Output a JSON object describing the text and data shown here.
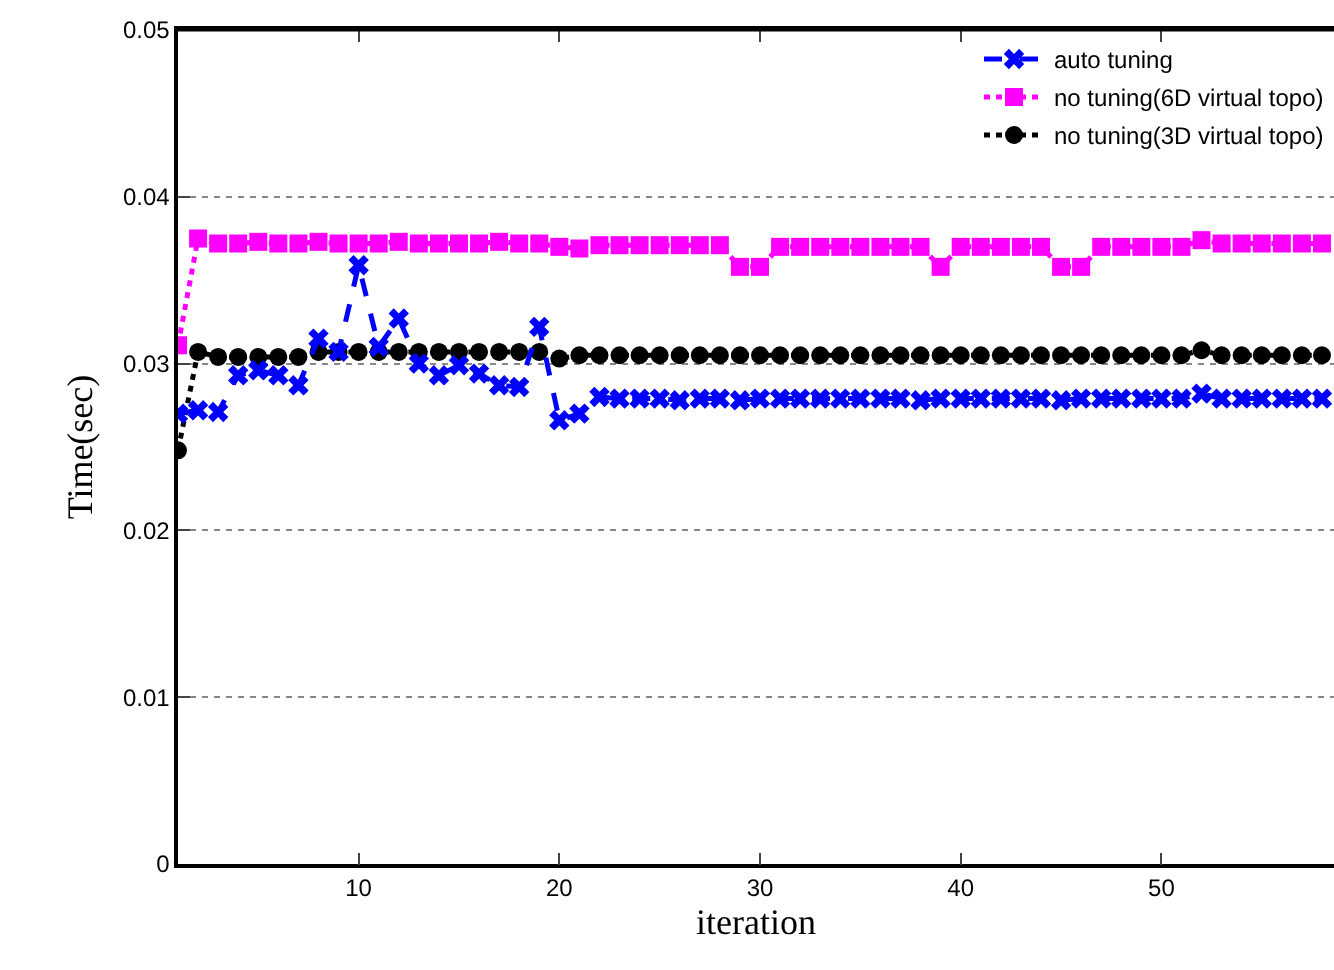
{
  "chart_data": {
    "type": "line",
    "xlabel": "iteration",
    "ylabel": "Time(sec)",
    "x": [
      1,
      2,
      3,
      4,
      5,
      6,
      7,
      8,
      9,
      10,
      11,
      12,
      13,
      14,
      15,
      16,
      17,
      18,
      19,
      20,
      21,
      22,
      23,
      24,
      25,
      26,
      27,
      28,
      29,
      30,
      31,
      32,
      33,
      34,
      35,
      36,
      37,
      38,
      39,
      40,
      41,
      42,
      43,
      44,
      45,
      46,
      47,
      48,
      49,
      50,
      51,
      52,
      53,
      54,
      55,
      56,
      57,
      58
    ],
    "xlim": [
      1,
      58.6
    ],
    "xticks": [
      10,
      20,
      30,
      40,
      50
    ],
    "ylim": [
      0,
      0.05
    ],
    "yticks": [
      0,
      0.01,
      0.02,
      0.03,
      0.04,
      0.05
    ],
    "grid": "y",
    "legend": "top right",
    "series": [
      {
        "name": "auto tuning",
        "color": "#0000ff",
        "line_style": "dashed",
        "marker": "cross",
        "values": [
          0.027,
          0.0272,
          0.0271,
          0.0293,
          0.0296,
          0.0293,
          0.0287,
          0.0315,
          0.0307,
          0.0359,
          0.031,
          0.0327,
          0.03,
          0.0293,
          0.0299,
          0.0294,
          0.0287,
          0.0286,
          0.0322,
          0.0266,
          0.027,
          0.028,
          0.0279,
          0.0279,
          0.0279,
          0.0278,
          0.0279,
          0.0279,
          0.0278,
          0.0279,
          0.0279,
          0.0279,
          0.0279,
          0.0279,
          0.0279,
          0.0279,
          0.0279,
          0.0278,
          0.0279,
          0.0279,
          0.0279,
          0.0279,
          0.0279,
          0.0279,
          0.0278,
          0.0279,
          0.0279,
          0.0279,
          0.0279,
          0.0279,
          0.0279,
          0.0282,
          0.0279,
          0.0279,
          0.0279,
          0.0279,
          0.0279,
          0.0279
        ]
      },
      {
        "name": "no tuning(6D virtual topo)",
        "color": "#ff00ff",
        "line_style": "dotted",
        "marker": "square",
        "values": [
          0.0311,
          0.0375,
          0.0372,
          0.0372,
          0.0373,
          0.0372,
          0.0372,
          0.0373,
          0.0372,
          0.0372,
          0.0372,
          0.0373,
          0.0372,
          0.0372,
          0.0372,
          0.0372,
          0.0373,
          0.0372,
          0.0372,
          0.037,
          0.0369,
          0.0371,
          0.0371,
          0.0371,
          0.0371,
          0.0371,
          0.0371,
          0.0371,
          0.0358,
          0.0358,
          0.037,
          0.037,
          0.037,
          0.037,
          0.037,
          0.037,
          0.037,
          0.037,
          0.0358,
          0.037,
          0.037,
          0.037,
          0.037,
          0.037,
          0.0358,
          0.0358,
          0.037,
          0.037,
          0.037,
          0.037,
          0.037,
          0.0374,
          0.0372,
          0.0372,
          0.0372,
          0.0372,
          0.0372,
          0.0372
        ]
      },
      {
        "name": "no tuning(3D virtual topo)",
        "color": "#000000",
        "line_style": "dotted",
        "marker": "circle",
        "values": [
          0.0248,
          0.0307,
          0.0304,
          0.0304,
          0.0304,
          0.0304,
          0.0304,
          0.0307,
          0.0307,
          0.0307,
          0.0307,
          0.0307,
          0.0307,
          0.0307,
          0.0307,
          0.0307,
          0.0307,
          0.0307,
          0.0307,
          0.0303,
          0.0305,
          0.0305,
          0.0305,
          0.0305,
          0.0305,
          0.0305,
          0.0305,
          0.0305,
          0.0305,
          0.0305,
          0.0305,
          0.0305,
          0.0305,
          0.0305,
          0.0305,
          0.0305,
          0.0305,
          0.0305,
          0.0305,
          0.0305,
          0.0305,
          0.0305,
          0.0305,
          0.0305,
          0.0305,
          0.0305,
          0.0305,
          0.0305,
          0.0305,
          0.0305,
          0.0305,
          0.0308,
          0.0305,
          0.0305,
          0.0305,
          0.0305,
          0.0305,
          0.0305
        ]
      }
    ]
  }
}
